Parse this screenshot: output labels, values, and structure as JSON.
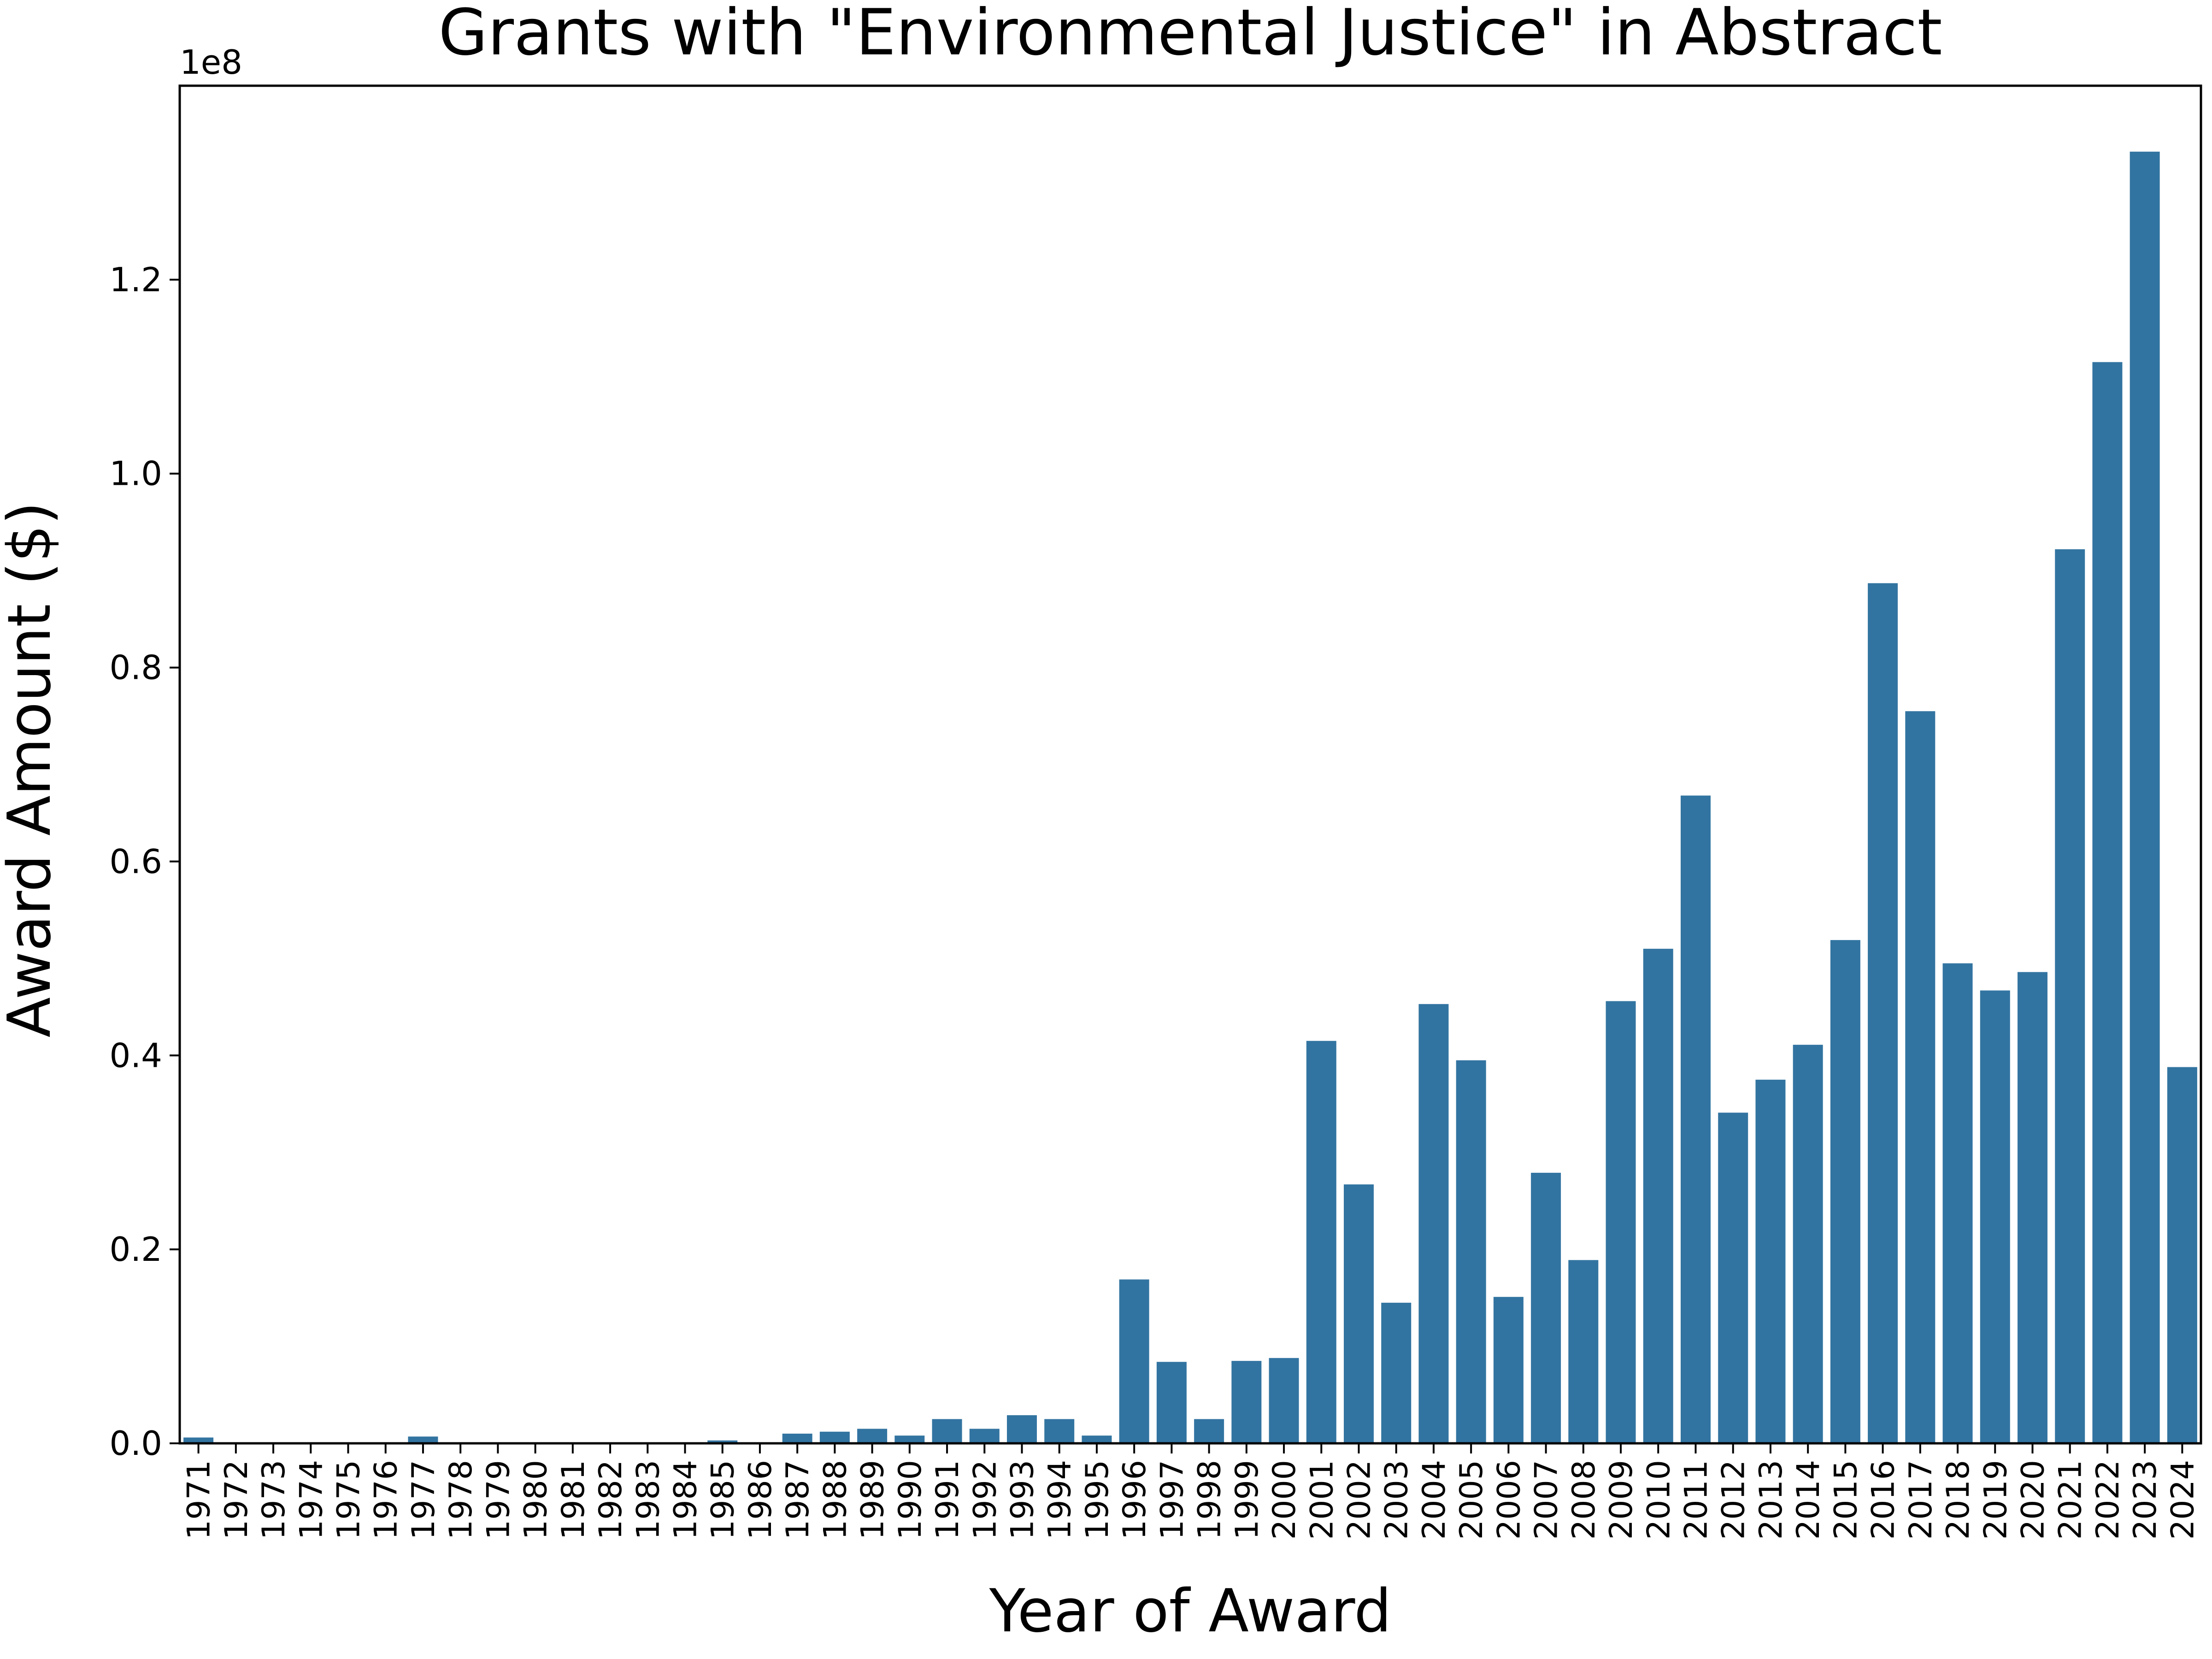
{
  "chart_data": {
    "type": "bar",
    "title": "Grants with \"Environmental Justice\" in Abstract",
    "xlabel": "Year of Award",
    "ylabel": "Award Amount ($)",
    "y_offset_label": "1e8",
    "ylim": [
      0,
      140000000
    ],
    "yticks": [
      0,
      20000000,
      40000000,
      60000000,
      80000000,
      100000000,
      120000000
    ],
    "ytick_labels": [
      "0.0",
      "0.2",
      "0.4",
      "0.6",
      "0.8",
      "1.0",
      "1.2"
    ],
    "grid": false,
    "legend": "none",
    "bar_color": "#3274a1",
    "categories": [
      "1971",
      "1972",
      "1973",
      "1974",
      "1975",
      "1976",
      "1977",
      "1978",
      "1979",
      "1980",
      "1981",
      "1982",
      "1983",
      "1984",
      "1985",
      "1986",
      "1987",
      "1988",
      "1989",
      "1990",
      "1991",
      "1992",
      "1993",
      "1994",
      "1995",
      "1996",
      "1997",
      "1998",
      "1999",
      "2000",
      "2001",
      "2002",
      "2003",
      "2004",
      "2005",
      "2006",
      "2007",
      "2008",
      "2009",
      "2010",
      "2011",
      "2012",
      "2013",
      "2014",
      "2015",
      "2016",
      "2017",
      "2018",
      "2019",
      "2020",
      "2021",
      "2022",
      "2023",
      "2024"
    ],
    "values": [
      600000,
      0,
      0,
      100000,
      0,
      0,
      700000,
      0,
      100000,
      100000,
      100000,
      0,
      100000,
      0,
      300000,
      0,
      1000000,
      1200000,
      1500000,
      800000,
      2500000,
      1500000,
      2900000,
      2500000,
      800000,
      16900000,
      8400000,
      2500000,
      8500000,
      8800000,
      41500000,
      26700000,
      14500000,
      45300000,
      39500000,
      15100000,
      27900000,
      18900000,
      45600000,
      51000000,
      66800000,
      34100000,
      37500000,
      41100000,
      51900000,
      88700000,
      75500000,
      49500000,
      46700000,
      48600000,
      92200000,
      111500000,
      133200000,
      38800000
    ]
  }
}
